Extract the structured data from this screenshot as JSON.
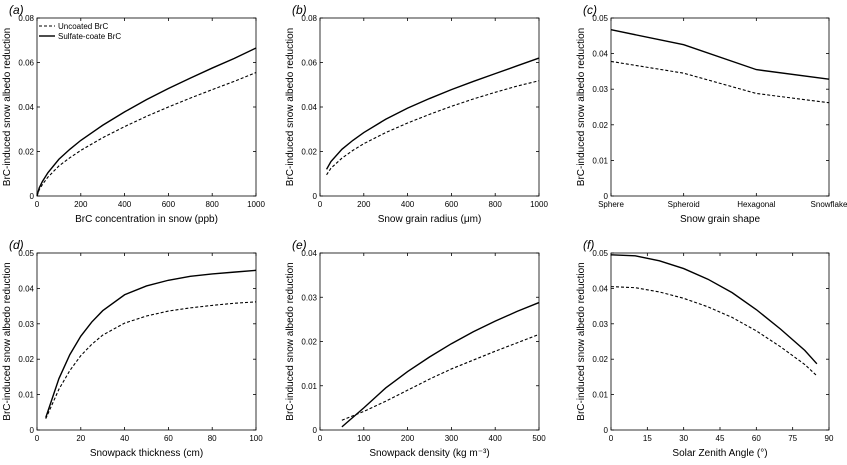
{
  "chart_data": [
    {
      "id": "a",
      "type": "line",
      "panel_label": "(a)",
      "xlabel": "BrC concentration in snow (ppb)",
      "ylabel": "BrC-induced snow albedo reduction",
      "xlim": [
        0,
        1000
      ],
      "ylim": [
        0,
        0.08
      ],
      "xticks": [
        "0",
        "200",
        "400",
        "600",
        "800",
        "1000"
      ],
      "yticks": [
        "0",
        "0.02",
        "0.04",
        "0.06",
        "0.08"
      ],
      "legend": {
        "position": "top-left",
        "entries": [
          "Uncoated BrC",
          "Sulfate-coate BrC"
        ]
      },
      "series": [
        {
          "name": "Uncoated BrC",
          "style": "dashed",
          "x": [
            0,
            10,
            25,
            50,
            100,
            150,
            200,
            300,
            400,
            500,
            600,
            700,
            800,
            900,
            1000
          ],
          "y": [
            0,
            0.0028,
            0.0052,
            0.0085,
            0.0135,
            0.0172,
            0.0205,
            0.0262,
            0.0312,
            0.0358,
            0.04,
            0.044,
            0.0478,
            0.0515,
            0.0555
          ]
        },
        {
          "name": "Sulfate-coate BrC",
          "style": "solid",
          "x": [
            0,
            10,
            25,
            50,
            100,
            150,
            200,
            300,
            400,
            500,
            600,
            700,
            800,
            900,
            1000
          ],
          "y": [
            0,
            0.0036,
            0.0066,
            0.0105,
            0.0165,
            0.021,
            0.025,
            0.0318,
            0.0378,
            0.0433,
            0.0483,
            0.053,
            0.0575,
            0.0618,
            0.0665
          ]
        }
      ]
    },
    {
      "id": "b",
      "type": "line",
      "panel_label": "(b)",
      "xlabel": "Snow grain radius (μm)",
      "ylabel": "BrC-induced snow albedo reduction",
      "xlim": [
        0,
        1000
      ],
      "ylim": [
        0,
        0.08
      ],
      "xticks": [
        "0",
        "200",
        "400",
        "600",
        "800",
        "1000"
      ],
      "yticks": [
        "0",
        "0.02",
        "0.04",
        "0.06",
        "0.08"
      ],
      "series": [
        {
          "name": "Uncoated BrC",
          "style": "dashed",
          "x": [
            30,
            50,
            100,
            150,
            200,
            300,
            400,
            500,
            600,
            700,
            800,
            900,
            1000
          ],
          "y": [
            0.0095,
            0.0125,
            0.017,
            0.0205,
            0.0235,
            0.0285,
            0.0328,
            0.0367,
            0.0403,
            0.0436,
            0.0466,
            0.0494,
            0.0518
          ]
        },
        {
          "name": "Sulfate-coate BrC",
          "style": "solid",
          "x": [
            30,
            50,
            100,
            150,
            200,
            300,
            400,
            500,
            600,
            700,
            800,
            900,
            1000
          ],
          "y": [
            0.012,
            0.0155,
            0.021,
            0.025,
            0.0285,
            0.0345,
            0.0395,
            0.0438,
            0.0478,
            0.0515,
            0.055,
            0.0585,
            0.062
          ]
        }
      ]
    },
    {
      "id": "c",
      "type": "line",
      "panel_label": "(c)",
      "xlabel": "Snow grain shape",
      "ylabel": "BrC-induced snow albedo reduction",
      "ylim": [
        0,
        0.05
      ],
      "categories": [
        "Sphere",
        "Spheroid",
        "Hexagonal",
        "Snowflake"
      ],
      "yticks": [
        "0",
        "0.01",
        "0.02",
        "0.03",
        "0.04",
        "0.05"
      ],
      "series": [
        {
          "name": "Uncoated BrC",
          "style": "dashed",
          "values": [
            0.0378,
            0.0345,
            0.0288,
            0.0262
          ]
        },
        {
          "name": "Sulfate-coate BrC",
          "style": "solid",
          "values": [
            0.0467,
            0.0425,
            0.0355,
            0.0328
          ]
        }
      ]
    },
    {
      "id": "d",
      "type": "line",
      "panel_label": "(d)",
      "xlabel": "Snowpack thickness (cm)",
      "ylabel": "BrC-induced snow albedo reduction",
      "xlim": [
        0,
        100
      ],
      "ylim": [
        0,
        0.05
      ],
      "xticks": [
        "0",
        "20",
        "40",
        "60",
        "80",
        "100"
      ],
      "yticks": [
        "0",
        "0.01",
        "0.02",
        "0.03",
        "0.04",
        "0.05"
      ],
      "series": [
        {
          "name": "Uncoated BrC",
          "style": "dashed",
          "x": [
            4,
            10,
            15,
            20,
            25,
            30,
            40,
            50,
            60,
            70,
            80,
            90,
            100
          ],
          "y": [
            0.0032,
            0.0115,
            0.0168,
            0.021,
            0.0242,
            0.0268,
            0.0302,
            0.0322,
            0.0336,
            0.0345,
            0.0352,
            0.0358,
            0.0362
          ]
        },
        {
          "name": "Sulfate-coate BrC",
          "style": "solid",
          "x": [
            4,
            10,
            15,
            20,
            25,
            30,
            40,
            50,
            60,
            70,
            80,
            90,
            100
          ],
          "y": [
            0.0035,
            0.0145,
            0.0213,
            0.0265,
            0.0305,
            0.0337,
            0.0382,
            0.0407,
            0.0423,
            0.0434,
            0.0441,
            0.0446,
            0.0451
          ]
        }
      ]
    },
    {
      "id": "e",
      "type": "line",
      "panel_label": "(e)",
      "xlabel": "Snowpack density (kg m⁻³)",
      "ylabel": "BrC-induced snow albedo reduction",
      "xlim": [
        0,
        500
      ],
      "ylim": [
        0,
        0.04
      ],
      "xticks": [
        "0",
        "100",
        "200",
        "300",
        "400",
        "500"
      ],
      "yticks": [
        "0",
        "0.01",
        "0.02",
        "0.03",
        "0.04"
      ],
      "series": [
        {
          "name": "Uncoated BrC",
          "style": "dashed",
          "x": [
            50,
            100,
            150,
            200,
            250,
            300,
            350,
            400,
            450,
            500
          ],
          "y": [
            0.0022,
            0.0042,
            0.0065,
            0.009,
            0.0115,
            0.0138,
            0.0158,
            0.0178,
            0.0197,
            0.0216
          ]
        },
        {
          "name": "Sulfate-coate BrC",
          "style": "solid",
          "x": [
            50,
            100,
            150,
            200,
            250,
            300,
            350,
            400,
            450,
            500
          ],
          "y": [
            0.0007,
            0.005,
            0.0095,
            0.0132,
            0.0165,
            0.0195,
            0.0222,
            0.0246,
            0.0268,
            0.0288
          ]
        }
      ]
    },
    {
      "id": "f",
      "type": "line",
      "panel_label": "(f)",
      "xlabel": "Solar Zenith Angle (°)",
      "ylabel": "BrC-induced snow albedo reduction",
      "xlim": [
        0,
        90
      ],
      "ylim": [
        0,
        0.05
      ],
      "xticks": [
        "0",
        "15",
        "30",
        "45",
        "60",
        "75",
        "90"
      ],
      "yticks": [
        "0",
        "0.01",
        "0.02",
        "0.03",
        "0.04",
        "0.05"
      ],
      "series": [
        {
          "name": "Uncoated BrC",
          "style": "dashed",
          "x": [
            0,
            10,
            20,
            30,
            40,
            50,
            60,
            70,
            80,
            85
          ],
          "y": [
            0.0405,
            0.0402,
            0.039,
            0.0372,
            0.0348,
            0.0318,
            0.028,
            0.0235,
            0.0185,
            0.0153
          ]
        },
        {
          "name": "Sulfate-coate BrC",
          "style": "solid",
          "x": [
            0,
            10,
            20,
            30,
            40,
            50,
            60,
            70,
            80,
            85
          ],
          "y": [
            0.0495,
            0.0492,
            0.0478,
            0.0456,
            0.0426,
            0.0388,
            0.034,
            0.0285,
            0.0225,
            0.0187
          ]
        }
      ]
    }
  ]
}
